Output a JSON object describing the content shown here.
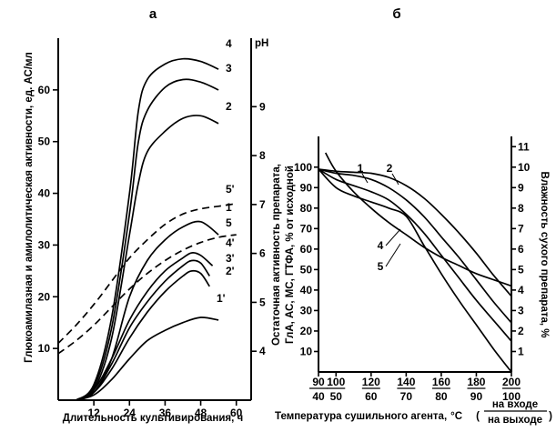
{
  "chart_data": [
    {
      "panel_label": "а",
      "type": "line",
      "xlabel": "Длительность культивирования, ч",
      "ylabel_left": "Глюкоамилазная и амилолитическая активности, ед. АС/мл",
      "ylabel_right": "pH",
      "xlim": [
        0,
        65
      ],
      "ylim_left": [
        0,
        70
      ],
      "ylim_right": [
        3,
        10.4
      ],
      "xticks": [
        12,
        24,
        36,
        48,
        60
      ],
      "yticks_left": [
        10,
        20,
        30,
        40,
        50,
        60
      ],
      "yticks_right": [
        4,
        5,
        6,
        7,
        8,
        9
      ],
      "series": [
        {
          "name": "1",
          "axis": "left",
          "dashed": false,
          "x": [
            6,
            12,
            18,
            24,
            30,
            36,
            42,
            48,
            54
          ],
          "y": [
            0,
            1.5,
            8,
            20,
            27,
            31,
            33.5,
            34.5,
            32
          ]
        },
        {
          "name": "2",
          "axis": "left",
          "dashed": false,
          "x": [
            6,
            12,
            18,
            24,
            27,
            30,
            36,
            42,
            48,
            54
          ],
          "y": [
            0,
            2,
            12,
            32,
            42,
            48,
            52,
            54.5,
            55,
            53.5
          ]
        },
        {
          "name": "3",
          "axis": "left",
          "dashed": false,
          "x": [
            6,
            12,
            18,
            24,
            27,
            30,
            36,
            42,
            48,
            54
          ],
          "y": [
            0,
            2.5,
            14,
            36,
            50,
            56,
            60.5,
            62,
            61.5,
            60
          ]
        },
        {
          "name": "4",
          "axis": "left",
          "dashed": false,
          "x": [
            6,
            12,
            18,
            24,
            27,
            30,
            36,
            42,
            48,
            54
          ],
          "y": [
            0,
            3,
            16,
            40,
            56,
            62,
            65,
            66,
            65.5,
            64
          ]
        },
        {
          "name": "1'",
          "axis": "left",
          "dashed": false,
          "x": [
            6,
            12,
            18,
            24,
            30,
            36,
            42,
            48,
            54
          ],
          "y": [
            0,
            1,
            4,
            8,
            11.5,
            13.5,
            15,
            16,
            15.5
          ]
        },
        {
          "name": "2'",
          "axis": "left",
          "dashed": false,
          "x": [
            6,
            12,
            18,
            24,
            30,
            36,
            42,
            45,
            48,
            51
          ],
          "y": [
            0,
            1.5,
            6,
            12,
            17,
            21,
            24,
            25,
            24.5,
            22
          ]
        },
        {
          "name": "3'",
          "axis": "left",
          "dashed": false,
          "x": [
            6,
            12,
            18,
            24,
            30,
            36,
            42,
            45,
            48,
            51
          ],
          "y": [
            0,
            1.5,
            7,
            14,
            19,
            23,
            26,
            27,
            26.5,
            24
          ]
        },
        {
          "name": "4'",
          "axis": "left",
          "dashed": false,
          "x": [
            6,
            12,
            18,
            24,
            30,
            36,
            42,
            45,
            48,
            52
          ],
          "y": [
            0,
            2,
            8,
            15.5,
            21,
            25,
            27.5,
            28.5,
            28,
            26
          ]
        },
        {
          "name": "5",
          "axis": "left",
          "dashed": true,
          "x": [
            0,
            6,
            12,
            18,
            24,
            30,
            36,
            42,
            48,
            54,
            60
          ],
          "y": [
            9,
            11.5,
            14.5,
            18,
            21.5,
            24.5,
            27,
            29,
            30.5,
            31.5,
            32
          ]
        },
        {
          "name": "5'",
          "axis": "left",
          "dashed": true,
          "x": [
            0,
            6,
            12,
            18,
            24,
            30,
            36,
            42,
            48,
            54,
            60
          ],
          "y": [
            11,
            14.5,
            18.5,
            23,
            27.5,
            31,
            34,
            36,
            37,
            37.5,
            38
          ]
        }
      ]
    },
    {
      "panel_label": "б",
      "type": "line",
      "xlabel": "Температура сушильного агента,",
      "xlabel_unit": "°C",
      "xlabel_fraction_top": "на входе",
      "xlabel_fraction_bottom": "на выходе",
      "ylabel_left": "Остаточная активность препарата, ГлА, АС, МС, ГТФА, % от исходной",
      "ylabel_right": "Влажность сухого препарата, %",
      "xlim": [
        90,
        200
      ],
      "ylim_left": [
        0,
        115
      ],
      "ylim_right": [
        0,
        11.5
      ],
      "xticks_top": [
        "90",
        "100",
        "120",
        "140",
        "160",
        "180",
        "200"
      ],
      "xticks_bottom": [
        "40",
        "50",
        "60",
        "70",
        "80",
        "90",
        "100"
      ],
      "xtick_positions": [
        90,
        100,
        120,
        140,
        160,
        180,
        200
      ],
      "yticks_left": [
        10,
        20,
        30,
        40,
        50,
        60,
        70,
        80,
        90,
        100
      ],
      "yticks_right": [
        1,
        2,
        3,
        4,
        5,
        6,
        7,
        8,
        9,
        10,
        11
      ],
      "series": [
        {
          "name": "1",
          "axis": "left",
          "x": [
            90,
            100,
            110,
            120,
            130,
            140,
            150,
            160,
            170,
            180,
            190,
            200
          ],
          "y": [
            99,
            97,
            96,
            94,
            90,
            84,
            76,
            66,
            56,
            45,
            34,
            24
          ]
        },
        {
          "name": "2",
          "axis": "left",
          "x": [
            90,
            100,
            110,
            120,
            130,
            140,
            150,
            160,
            170,
            180,
            190,
            200
          ],
          "y": [
            99,
            98,
            97.5,
            97,
            95,
            91,
            85,
            77,
            68,
            58,
            47,
            37
          ]
        },
        {
          "name": "4",
          "axis": "left",
          "x": [
            90,
            100,
            110,
            120,
            130,
            140,
            150,
            160,
            170,
            180,
            190,
            200
          ],
          "y": [
            99,
            94,
            91,
            88,
            84,
            77,
            68,
            57,
            46,
            35,
            25,
            15
          ]
        },
        {
          "name": "5",
          "axis": "left",
          "x": [
            90,
            100,
            110,
            120,
            130,
            140,
            150,
            160,
            170,
            180,
            190,
            200
          ],
          "y": [
            99,
            90,
            86,
            83,
            80,
            76,
            62,
            48,
            35,
            23,
            11,
            0
          ]
        },
        {
          "name": "",
          "axis": "left",
          "x": [
            94,
            100,
            110,
            120,
            130,
            140,
            150,
            160,
            170,
            180,
            190,
            200
          ],
          "y": [
            107,
            98,
            88,
            80,
            73,
            67,
            61,
            56,
            52,
            48,
            45,
            42
          ]
        }
      ]
    }
  ]
}
